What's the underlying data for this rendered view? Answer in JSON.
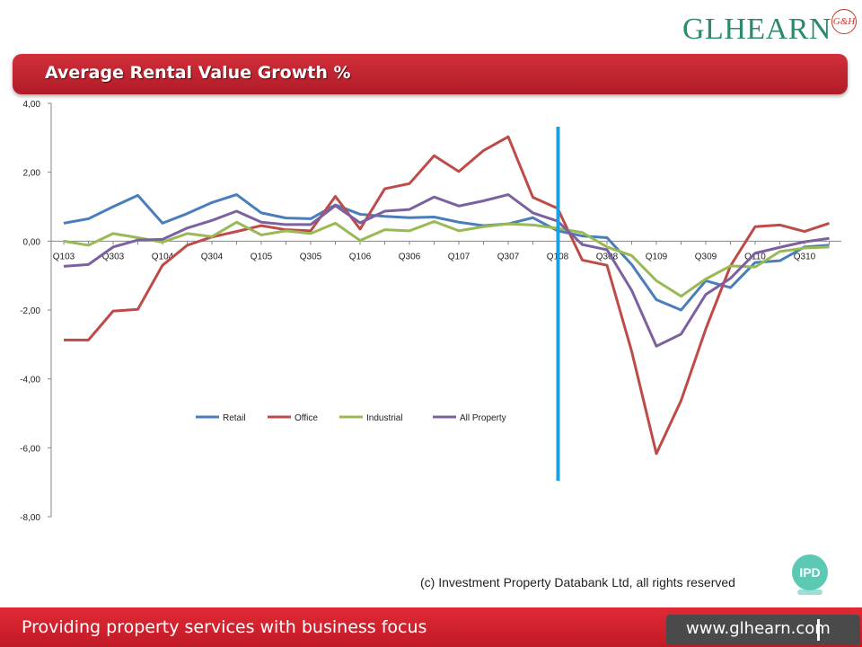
{
  "logo": {
    "name": "GLHEARN",
    "mark": "G&H"
  },
  "header": {
    "title": "Average Rental Value Growth %"
  },
  "credit": "(c) Investment Property Databank Ltd, all rights reserved",
  "ipd_badge": "IPD",
  "footer": {
    "tagline": "Providing property services with business focus",
    "url": "www.glhearn.com"
  },
  "colors": {
    "retail": "#4a7ebb",
    "office": "#be4b48",
    "industrial": "#98b954",
    "all_property": "#7d60a0",
    "marker": "#1ba1e2",
    "brand_red": "#c8202c"
  },
  "chart_data": {
    "type": "line",
    "ylim": [
      -8,
      4
    ],
    "yticks": [
      "4,00",
      "2,00",
      "0,00",
      "-2,00",
      "-4,00",
      "-6,00",
      "-8,00"
    ],
    "x": [
      "Q103",
      "Q203",
      "Q303",
      "Q403",
      "Q104",
      "Q204",
      "Q304",
      "Q404",
      "Q105",
      "Q205",
      "Q305",
      "Q405",
      "Q106",
      "Q206",
      "Q306",
      "Q406",
      "Q107",
      "Q207",
      "Q307",
      "Q407",
      "Q108",
      "Q208",
      "Q308",
      "Q408",
      "Q109",
      "Q209",
      "Q309",
      "Q409",
      "Q110",
      "Q210",
      "Q310",
      "Q410"
    ],
    "xtick_labels_shown": [
      "Q103",
      "Q303",
      "Q104",
      "Q304",
      "Q105",
      "Q305",
      "Q106",
      "Q306",
      "Q107",
      "Q307",
      "Q108",
      "Q308",
      "Q109",
      "Q309",
      "Q110",
      "Q310"
    ],
    "marker_after": "Q108",
    "series": [
      {
        "name": "Retail",
        "values": [
          0.52,
          0.65,
          1.0,
          1.33,
          0.52,
          0.8,
          1.12,
          1.35,
          0.82,
          0.67,
          0.65,
          1.05,
          0.78,
          0.72,
          0.68,
          0.7,
          0.55,
          0.45,
          0.5,
          0.68,
          0.3,
          0.15,
          0.1,
          -0.68,
          -1.7,
          -2.0,
          -1.15,
          -1.35,
          -0.62,
          -0.57,
          -0.17,
          -0.12
        ]
      },
      {
        "name": "Office",
        "values": [
          -2.87,
          -2.87,
          -2.03,
          -1.98,
          -0.7,
          -0.12,
          0.12,
          0.28,
          0.45,
          0.33,
          0.3,
          1.3,
          0.35,
          1.52,
          1.67,
          2.48,
          2.02,
          2.63,
          3.03,
          1.27,
          0.95,
          -0.55,
          -0.7,
          -3.2,
          -6.17,
          -4.63,
          -2.55,
          -0.72,
          0.42,
          0.47,
          0.28,
          0.52
        ]
      },
      {
        "name": "Industrial",
        "values": [
          0.0,
          -0.12,
          0.22,
          0.1,
          -0.03,
          0.22,
          0.13,
          0.55,
          0.18,
          0.3,
          0.22,
          0.52,
          0.02,
          0.33,
          0.3,
          0.57,
          0.3,
          0.42,
          0.5,
          0.47,
          0.37,
          0.25,
          -0.17,
          -0.42,
          -1.15,
          -1.6,
          -1.1,
          -0.72,
          -0.75,
          -0.3,
          -0.2,
          -0.17
        ]
      },
      {
        "name": "All Property",
        "values": [
          -0.73,
          -0.68,
          -0.17,
          0.03,
          0.05,
          0.38,
          0.6,
          0.87,
          0.55,
          0.48,
          0.48,
          1.03,
          0.53,
          0.87,
          0.92,
          1.28,
          1.02,
          1.17,
          1.35,
          0.82,
          0.58,
          -0.1,
          -0.25,
          -1.43,
          -3.05,
          -2.7,
          -1.55,
          -1.08,
          -0.35,
          -0.18,
          -0.02,
          0.08
        ]
      }
    ]
  }
}
